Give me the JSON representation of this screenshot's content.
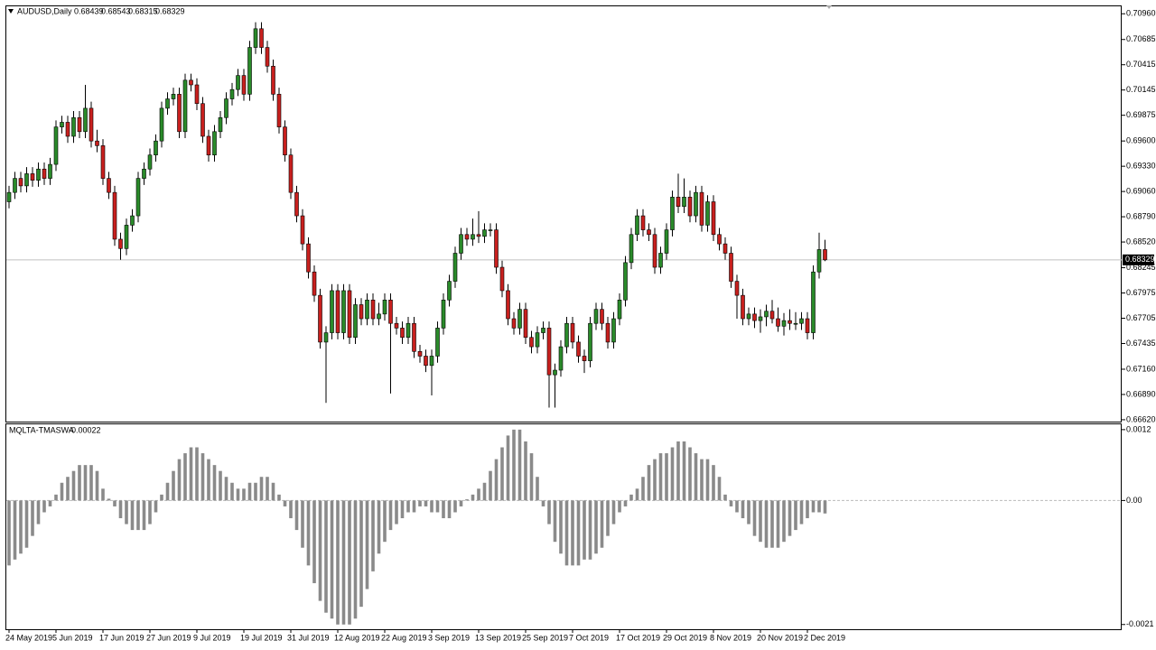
{
  "chart_data": [
    {
      "type": "candlestick",
      "title": "AUDUSD,Daily",
      "up_color": "#2a8a2a",
      "down_color": "#c8201e",
      "ylim": [
        0.666,
        0.7103
      ],
      "yticks": [
        {
          "value": 0.7096,
          "label": "0.70960"
        },
        0.70685,
        0.70415,
        0.70145,
        0.69875,
        {
          "value": 0.696,
          "label": "0.69600"
        },
        {
          "value": 0.6933,
          "label": "0.69330"
        },
        {
          "value": 0.6906,
          "label": "0.69060"
        },
        {
          "value": 0.6879,
          "label": "0.68790"
        },
        {
          "value": 0.6852,
          "label": "0.68520"
        },
        0.68245,
        0.67975,
        0.67705,
        0.67435,
        {
          "value": 0.6716,
          "label": "0.67160"
        },
        {
          "value": 0.6689,
          "label": "0.66890"
        },
        {
          "value": 0.6662,
          "label": "0.66620"
        }
      ],
      "categories": [
        "24 May 2019",
        null,
        null,
        null,
        null,
        null,
        null,
        null,
        "5 Jun 2019",
        null,
        null,
        null,
        null,
        null,
        null,
        null,
        "17 Jun 2019",
        null,
        null,
        null,
        null,
        null,
        null,
        null,
        "27 Jun 2019",
        null,
        null,
        null,
        null,
        null,
        null,
        null,
        "9 Jul 2019",
        null,
        null,
        null,
        null,
        null,
        null,
        null,
        "19 Jul 2019",
        null,
        null,
        null,
        null,
        null,
        null,
        null,
        "31 Jul 2019",
        null,
        null,
        null,
        null,
        null,
        null,
        null,
        "12 Aug 2019",
        null,
        null,
        null,
        null,
        null,
        null,
        null,
        "22 Aug 2019",
        null,
        null,
        null,
        null,
        null,
        null,
        null,
        "3 Sep 2019",
        null,
        null,
        null,
        null,
        null,
        null,
        null,
        "13 Sep 2019",
        null,
        null,
        null,
        null,
        null,
        null,
        null,
        "25 Sep 2019",
        null,
        null,
        null,
        null,
        null,
        null,
        null,
        "7 Oct 2019",
        null,
        null,
        null,
        null,
        null,
        null,
        null,
        "17 Oct 2019",
        null,
        null,
        null,
        null,
        null,
        null,
        null,
        "29 Oct 2019",
        null,
        null,
        null,
        null,
        null,
        null,
        null,
        "8 Nov 2019",
        null,
        null,
        null,
        null,
        null,
        null,
        null,
        "20 Nov 2019",
        null,
        null,
        null,
        null,
        null,
        null,
        null,
        "2 Dec 2019",
        null,
        null,
        null
      ],
      "candles": [
        [
          0.6895,
          0.6912,
          0.6888,
          0.6905
        ],
        [
          0.6905,
          0.6927,
          0.6898,
          0.692
        ],
        [
          0.692,
          0.6927,
          0.6905,
          0.6912
        ],
        [
          0.6912,
          0.6932,
          0.6905,
          0.6925
        ],
        [
          0.6925,
          0.6932,
          0.6911,
          0.6918
        ],
        [
          0.6918,
          0.6937,
          0.6911,
          0.693
        ],
        [
          0.693,
          0.6937,
          0.6913,
          0.692
        ],
        [
          0.692,
          0.6942,
          0.6913,
          0.6935
        ],
        [
          0.6935,
          0.6982,
          0.6928,
          0.6975
        ],
        [
          0.6975,
          0.6987,
          0.6968,
          0.698
        ],
        [
          0.698,
          0.6987,
          0.6958,
          0.6965
        ],
        [
          0.6965,
          0.6992,
          0.6958,
          0.6985
        ],
        [
          0.6985,
          0.6992,
          0.6963,
          0.697
        ],
        [
          0.697,
          0.702,
          0.6963,
          0.6995
        ],
        [
          0.6995,
          0.7002,
          0.6953,
          0.696
        ],
        [
          0.696,
          0.6972,
          0.6948,
          0.6955
        ],
        [
          0.6955,
          0.6962,
          0.6913,
          0.692
        ],
        [
          0.692,
          0.6927,
          0.6898,
          0.6905
        ],
        [
          0.6905,
          0.6912,
          0.6848,
          0.6855
        ],
        [
          0.6855,
          0.6862,
          0.6833,
          0.6845
        ],
        [
          0.6845,
          0.6877,
          0.6838,
          0.687
        ],
        [
          0.687,
          0.6887,
          0.6863,
          0.688
        ],
        [
          0.688,
          0.6927,
          0.6873,
          0.692
        ],
        [
          0.692,
          0.6937,
          0.6913,
          0.693
        ],
        [
          0.693,
          0.6952,
          0.6923,
          0.6945
        ],
        [
          0.6945,
          0.6967,
          0.6938,
          0.696
        ],
        [
          0.696,
          0.7002,
          0.6953,
          0.6995
        ],
        [
          0.6995,
          0.7012,
          0.6988,
          0.7005
        ],
        [
          0.7005,
          0.7017,
          0.6998,
          0.701
        ],
        [
          0.701,
          0.7017,
          0.6963,
          0.697
        ],
        [
          0.697,
          0.7032,
          0.6963,
          0.7025
        ],
        [
          0.7025,
          0.7032,
          0.7013,
          0.702
        ],
        [
          0.702,
          0.7027,
          0.6993,
          0.7
        ],
        [
          0.7,
          0.7007,
          0.6958,
          0.6965
        ],
        [
          0.6965,
          0.6972,
          0.6938,
          0.6945
        ],
        [
          0.6945,
          0.6977,
          0.6938,
          0.697
        ],
        [
          0.697,
          0.6992,
          0.6963,
          0.6985
        ],
        [
          0.6985,
          0.7012,
          0.6978,
          0.7005
        ],
        [
          0.7005,
          0.7022,
          0.6998,
          0.7015
        ],
        [
          0.7015,
          0.7037,
          0.7008,
          0.703
        ],
        [
          0.703,
          0.7037,
          0.7003,
          0.701
        ],
        [
          0.701,
          0.7067,
          0.7003,
          0.706
        ],
        [
          0.706,
          0.7087,
          0.7053,
          0.708
        ],
        [
          0.708,
          0.7087,
          0.7053,
          0.706
        ],
        [
          0.706,
          0.7067,
          0.7033,
          0.704
        ],
        [
          0.704,
          0.7047,
          0.7003,
          0.701
        ],
        [
          0.701,
          0.7017,
          0.6968,
          0.6975
        ],
        [
          0.6975,
          0.6982,
          0.6938,
          0.6945
        ],
        [
          0.6945,
          0.6952,
          0.6898,
          0.6905
        ],
        [
          0.6905,
          0.6912,
          0.6873,
          0.688
        ],
        [
          0.688,
          0.6887,
          0.6843,
          0.685
        ],
        [
          0.685,
          0.6857,
          0.6813,
          0.682
        ],
        [
          0.682,
          0.6827,
          0.6788,
          0.6795
        ],
        [
          0.6795,
          0.6802,
          0.6738,
          0.6745
        ],
        [
          0.6745,
          0.6762,
          0.668,
          0.6755
        ],
        [
          0.6755,
          0.6807,
          0.6748,
          0.68
        ],
        [
          0.68,
          0.6807,
          0.6748,
          0.6755
        ],
        [
          0.6755,
          0.6807,
          0.6748,
          0.68
        ],
        [
          0.68,
          0.6807,
          0.6743,
          0.675
        ],
        [
          0.675,
          0.6792,
          0.6743,
          0.6785
        ],
        [
          0.6785,
          0.6792,
          0.6763,
          0.677
        ],
        [
          0.677,
          0.6797,
          0.6763,
          0.679
        ],
        [
          0.679,
          0.6797,
          0.6763,
          0.677
        ],
        [
          0.677,
          0.6787,
          0.6763,
          0.6775
        ],
        [
          0.6775,
          0.6797,
          0.6768,
          0.679
        ],
        [
          0.679,
          0.6797,
          0.669,
          0.6765
        ],
        [
          0.6765,
          0.6772,
          0.6753,
          0.676
        ],
        [
          0.676,
          0.6767,
          0.6743,
          0.675
        ],
        [
          0.675,
          0.6772,
          0.6743,
          0.6765
        ],
        [
          0.6765,
          0.6772,
          0.6728,
          0.6735
        ],
        [
          0.6735,
          0.6742,
          0.6723,
          0.673
        ],
        [
          0.673,
          0.6737,
          0.6713,
          0.672
        ],
        [
          0.672,
          0.6737,
          0.6688,
          0.673
        ],
        [
          0.673,
          0.6767,
          0.6723,
          0.676
        ],
        [
          0.676,
          0.6797,
          0.6753,
          0.679
        ],
        [
          0.679,
          0.6817,
          0.6783,
          0.681
        ],
        [
          0.681,
          0.6847,
          0.6803,
          0.684
        ],
        [
          0.684,
          0.6867,
          0.6833,
          0.686
        ],
        [
          0.686,
          0.6867,
          0.6848,
          0.6855
        ],
        [
          0.6855,
          0.6877,
          0.6848,
          0.686
        ],
        [
          0.686,
          0.6885,
          0.6851,
          0.6858
        ],
        [
          0.6858,
          0.6872,
          0.6851,
          0.6865
        ],
        [
          0.6865,
          0.6872,
          0.6858,
          0.6865
        ],
        [
          0.6865,
          0.6872,
          0.6818,
          0.6825
        ],
        [
          0.6825,
          0.6832,
          0.6793,
          0.68
        ],
        [
          0.68,
          0.6807,
          0.6763,
          0.677
        ],
        [
          0.677,
          0.6777,
          0.6753,
          0.676
        ],
        [
          0.676,
          0.6787,
          0.6753,
          0.678
        ],
        [
          0.678,
          0.6787,
          0.6743,
          0.675
        ],
        [
          0.675,
          0.6757,
          0.6733,
          0.674
        ],
        [
          0.674,
          0.6762,
          0.6733,
          0.6755
        ],
        [
          0.6755,
          0.6767,
          0.6748,
          0.676
        ],
        [
          0.676,
          0.6767,
          0.6675,
          0.671
        ],
        [
          0.671,
          0.6722,
          0.6675,
          0.6715
        ],
        [
          0.6715,
          0.6747,
          0.6708,
          0.674
        ],
        [
          0.674,
          0.6772,
          0.6733,
          0.6765
        ],
        [
          0.6765,
          0.6772,
          0.6738,
          0.6745
        ],
        [
          0.6745,
          0.6752,
          0.6723,
          0.673
        ],
        [
          0.673,
          0.6737,
          0.6712,
          0.6725
        ],
        [
          0.6725,
          0.6772,
          0.6718,
          0.6765
        ],
        [
          0.6765,
          0.6787,
          0.6758,
          0.678
        ],
        [
          0.678,
          0.6787,
          0.6758,
          0.6765
        ],
        [
          0.6765,
          0.6772,
          0.6738,
          0.6745
        ],
        [
          0.6745,
          0.6777,
          0.6738,
          0.677
        ],
        [
          0.677,
          0.6797,
          0.6763,
          0.679
        ],
        [
          0.679,
          0.6837,
          0.6783,
          0.683
        ],
        [
          0.683,
          0.6867,
          0.6823,
          0.686
        ],
        [
          0.686,
          0.6887,
          0.6853,
          0.688
        ],
        [
          0.688,
          0.6887,
          0.6858,
          0.6865
        ],
        [
          0.6865,
          0.6872,
          0.6853,
          0.686
        ],
        [
          0.686,
          0.6867,
          0.6818,
          0.6825
        ],
        [
          0.6825,
          0.6847,
          0.6818,
          0.684
        ],
        [
          0.684,
          0.6872,
          0.6833,
          0.6865
        ],
        [
          0.6865,
          0.6907,
          0.6858,
          0.69
        ],
        [
          0.69,
          0.6925,
          0.6883,
          0.689
        ],
        [
          0.689,
          0.692,
          0.6883,
          0.69
        ],
        [
          0.69,
          0.6907,
          0.6873,
          0.688
        ],
        [
          0.688,
          0.6912,
          0.6873,
          0.6905
        ],
        [
          0.6905,
          0.6912,
          0.6863,
          0.687
        ],
        [
          0.687,
          0.6902,
          0.6863,
          0.6895
        ],
        [
          0.6895,
          0.6902,
          0.6853,
          0.686
        ],
        [
          0.686,
          0.6867,
          0.6843,
          0.685
        ],
        [
          0.685,
          0.6857,
          0.6833,
          0.684
        ],
        [
          0.684,
          0.6847,
          0.6803,
          0.681
        ],
        [
          0.681,
          0.6817,
          0.677,
          0.6795
        ],
        [
          0.6795,
          0.6802,
          0.6763,
          0.677
        ],
        [
          0.677,
          0.6782,
          0.6763,
          0.6775
        ],
        [
          0.6775,
          0.6782,
          0.676,
          0.6768
        ],
        [
          0.6768,
          0.678,
          0.6755,
          0.6772
        ],
        [
          0.6772,
          0.6785,
          0.6762,
          0.6778
        ],
        [
          0.6778,
          0.679,
          0.6765,
          0.677
        ],
        [
          0.677,
          0.6782,
          0.6756,
          0.6762
        ],
        [
          0.6762,
          0.6776,
          0.6752,
          0.6768
        ],
        [
          0.6768,
          0.678,
          0.6758,
          0.6765
        ],
        [
          0.6765,
          0.6777,
          0.6758,
          0.6765
        ],
        [
          0.6765,
          0.6777,
          0.6758,
          0.677
        ],
        [
          0.677,
          0.6777,
          0.6748,
          0.6755
        ],
        [
          0.6755,
          0.6827,
          0.6748,
          0.682
        ],
        [
          0.682,
          0.6862,
          0.6813,
          0.68439
        ],
        [
          0.68439,
          0.68543,
          0.68315,
          0.68329
        ]
      ]
    },
    {
      "type": "bar",
      "title": "MQLTA-TMASWA",
      "color": "#8a8a8a",
      "ylim": [
        -0.00218,
        0.00129
      ],
      "yticks": [
        0.0012,
        {
          "value": 0,
          "label": "0.00"
        },
        -0.0021
      ],
      "values": [
        -0.0011,
        -0.001,
        -0.0009,
        -0.0008,
        -0.0006,
        -0.0004,
        -0.0002,
        -0.0001,
        0.0001,
        0.0003,
        0.0004,
        0.0005,
        0.0006,
        0.0006,
        0.0006,
        0.0005,
        0.0002,
        3e-05,
        -0.0001,
        -0.0003,
        -0.0004,
        -0.0005,
        -0.0005,
        -0.0005,
        -0.0004,
        -0.0002,
        0.0001,
        0.0003,
        0.0005,
        0.0007,
        0.0008,
        0.0009,
        0.0009,
        0.0008,
        0.0007,
        0.0006,
        0.0005,
        0.0004,
        0.0003,
        0.0002,
        0.0002,
        0.0003,
        0.0003,
        0.0004,
        0.0004,
        0.0003,
        0.0001,
        -0.0001,
        -0.0003,
        -0.0005,
        -0.0008,
        -0.0011,
        -0.0014,
        -0.0017,
        -0.0019,
        -0.002,
        -0.0021,
        -0.0021,
        -0.0021,
        -0.002,
        -0.0018,
        -0.0015,
        -0.0012,
        -0.0009,
        -0.0007,
        -0.0005,
        -0.0004,
        -0.0003,
        -0.0002,
        -0.0002,
        -0.0001,
        -0.0001,
        -0.0002,
        -0.0002,
        -0.0003,
        -0.0003,
        -0.0002,
        -0.0001,
        2e-05,
        0.0001,
        0.0002,
        0.0003,
        0.0005,
        0.0007,
        0.0009,
        0.0011,
        0.0012,
        0.0012,
        0.001,
        0.0008,
        0.0004,
        -0.0001,
        -0.0004,
        -0.0007,
        -0.0009,
        -0.0011,
        -0.0011,
        -0.0011,
        -0.001,
        -0.001,
        -0.0009,
        -0.0008,
        -0.0006,
        -0.0004,
        -0.0002,
        -0.0001,
        0.0001,
        0.0002,
        0.0004,
        0.0006,
        0.0007,
        0.0008,
        0.0008,
        0.0009,
        0.001,
        0.001,
        0.0009,
        0.0008,
        0.0007,
        0.0007,
        0.0006,
        0.0004,
        0.0001,
        -0.0001,
        -0.0002,
        -0.0003,
        -0.0004,
        -0.0006,
        -0.0007,
        -0.0008,
        -0.0008,
        -0.0008,
        -0.0007,
        -0.0006,
        -0.0005,
        -0.0004,
        -0.0003,
        -0.0002,
        -0.0002,
        -0.00022
      ]
    }
  ]
}
